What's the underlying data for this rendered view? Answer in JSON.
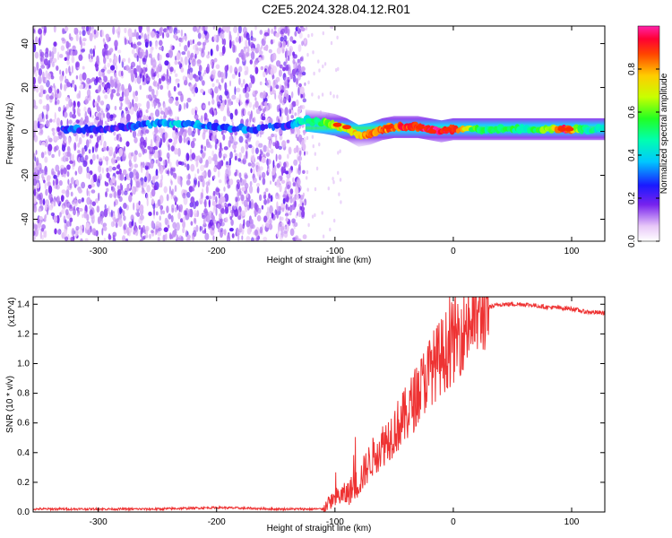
{
  "title": "C2E5.2024.328.04.12.R01",
  "colors": {
    "snr_line": "#ee3333",
    "spectrogram_noise": "#7722ee",
    "axis": "#000000",
    "frame": "#000000"
  },
  "chart_data": [
    {
      "type": "heatmap",
      "xlabel": "Height of straight line (km)",
      "ylabel": "Frequency (Hz)",
      "xlim": [
        -355,
        128
      ],
      "ylim": [
        -50,
        48
      ],
      "x_ticks": [
        -300,
        -200,
        -100,
        0,
        100
      ],
      "x_tick_labels": [
        "-300",
        "-200",
        "-100",
        "0",
        "100"
      ],
      "y_ticks": [
        -40,
        -20,
        0,
        20,
        40
      ],
      "y_tick_labels": [
        "-40",
        "-20",
        "0",
        "20",
        "40"
      ],
      "colorbar": {
        "label": "Normalized spectral amplitude",
        "range": [
          0.0,
          1.0
        ],
        "ticks": [
          0.0,
          0.2,
          0.4,
          0.6,
          0.8
        ],
        "tick_labels": [
          "0.0",
          "0.2",
          "0.4",
          "0.6",
          "0.8"
        ],
        "colormap": "rainbow"
      },
      "noise_extent_x": [
        -355,
        -125
      ],
      "signal_band": [
        {
          "x": -330,
          "f": 1,
          "amp": 0.22
        },
        {
          "x": -320,
          "f": 1,
          "amp": 0.3
        },
        {
          "x": -300,
          "f": 1,
          "amp": 0.2
        },
        {
          "x": -280,
          "f": 2,
          "amp": 0.2
        },
        {
          "x": -260,
          "f": 3,
          "amp": 0.3
        },
        {
          "x": -240,
          "f": 4,
          "amp": 0.35
        },
        {
          "x": -220,
          "f": 3,
          "amp": 0.35
        },
        {
          "x": -200,
          "f": 2,
          "amp": 0.3
        },
        {
          "x": -170,
          "f": 1,
          "amp": 0.3
        },
        {
          "x": -140,
          "f": 3,
          "amp": 0.25
        },
        {
          "x": -125,
          "f": 5,
          "amp": 0.45
        },
        {
          "x": -110,
          "f": 4,
          "amp": 0.6
        },
        {
          "x": -100,
          "f": 3,
          "amp": 0.7
        },
        {
          "x": -90,
          "f": 1,
          "amp": 0.7
        },
        {
          "x": -80,
          "f": -2,
          "amp": 0.75
        },
        {
          "x": -70,
          "f": -1,
          "amp": 0.8
        },
        {
          "x": -60,
          "f": 1,
          "amp": 0.85
        },
        {
          "x": -50,
          "f": 2,
          "amp": 0.85
        },
        {
          "x": -40,
          "f": 2,
          "amp": 0.9
        },
        {
          "x": -30,
          "f": 2,
          "amp": 0.9
        },
        {
          "x": -20,
          "f": 1,
          "amp": 0.95
        },
        {
          "x": -10,
          "f": 0,
          "amp": 0.95
        },
        {
          "x": 0,
          "f": 1,
          "amp": 0.9
        },
        {
          "x": 20,
          "f": 1,
          "amp": 0.5
        },
        {
          "x": 40,
          "f": 1,
          "amp": 0.5
        },
        {
          "x": 60,
          "f": 1,
          "amp": 0.5
        },
        {
          "x": 80,
          "f": 1,
          "amp": 0.6
        },
        {
          "x": 95,
          "f": 1,
          "amp": 0.95
        },
        {
          "x": 110,
          "f": 1,
          "amp": 0.5
        },
        {
          "x": 128,
          "f": 1,
          "amp": 0.4
        }
      ]
    },
    {
      "type": "line",
      "xlabel": "Height of straight line (km)",
      "ylabel": "SNR (10 * v/v)",
      "y_multiplier": "(x10^4)",
      "xlim": [
        -355,
        128
      ],
      "ylim": [
        0.0,
        1.45
      ],
      "x_ticks": [
        -300,
        -200,
        -100,
        0,
        100
      ],
      "x_tick_labels": [
        "-300",
        "-200",
        "-100",
        "0",
        "100"
      ],
      "y_ticks": [
        0.0,
        0.2,
        0.4,
        0.6,
        0.8,
        1.0,
        1.2,
        1.4
      ],
      "y_tick_labels": [
        "0.0",
        "0.2",
        "0.4",
        "0.6",
        "0.8",
        "1.0",
        "1.2",
        "1.4"
      ],
      "series": [
        {
          "x": [
            -355,
            -300,
            -250,
            -200,
            -150,
            -110,
            -100,
            -90,
            -80,
            -70,
            -60,
            -50,
            -40,
            -30,
            -20,
            -10,
            0,
            10,
            20,
            30,
            40,
            60,
            80,
            100,
            110,
            128
          ],
          "y": [
            0.02,
            0.02,
            0.02,
            0.03,
            0.02,
            0.02,
            0.1,
            0.12,
            0.2,
            0.35,
            0.45,
            0.55,
            0.65,
            0.8,
            0.95,
            1.05,
            1.15,
            1.25,
            1.32,
            1.38,
            1.4,
            1.4,
            1.38,
            1.37,
            1.35,
            1.34
          ]
        }
      ]
    }
  ]
}
